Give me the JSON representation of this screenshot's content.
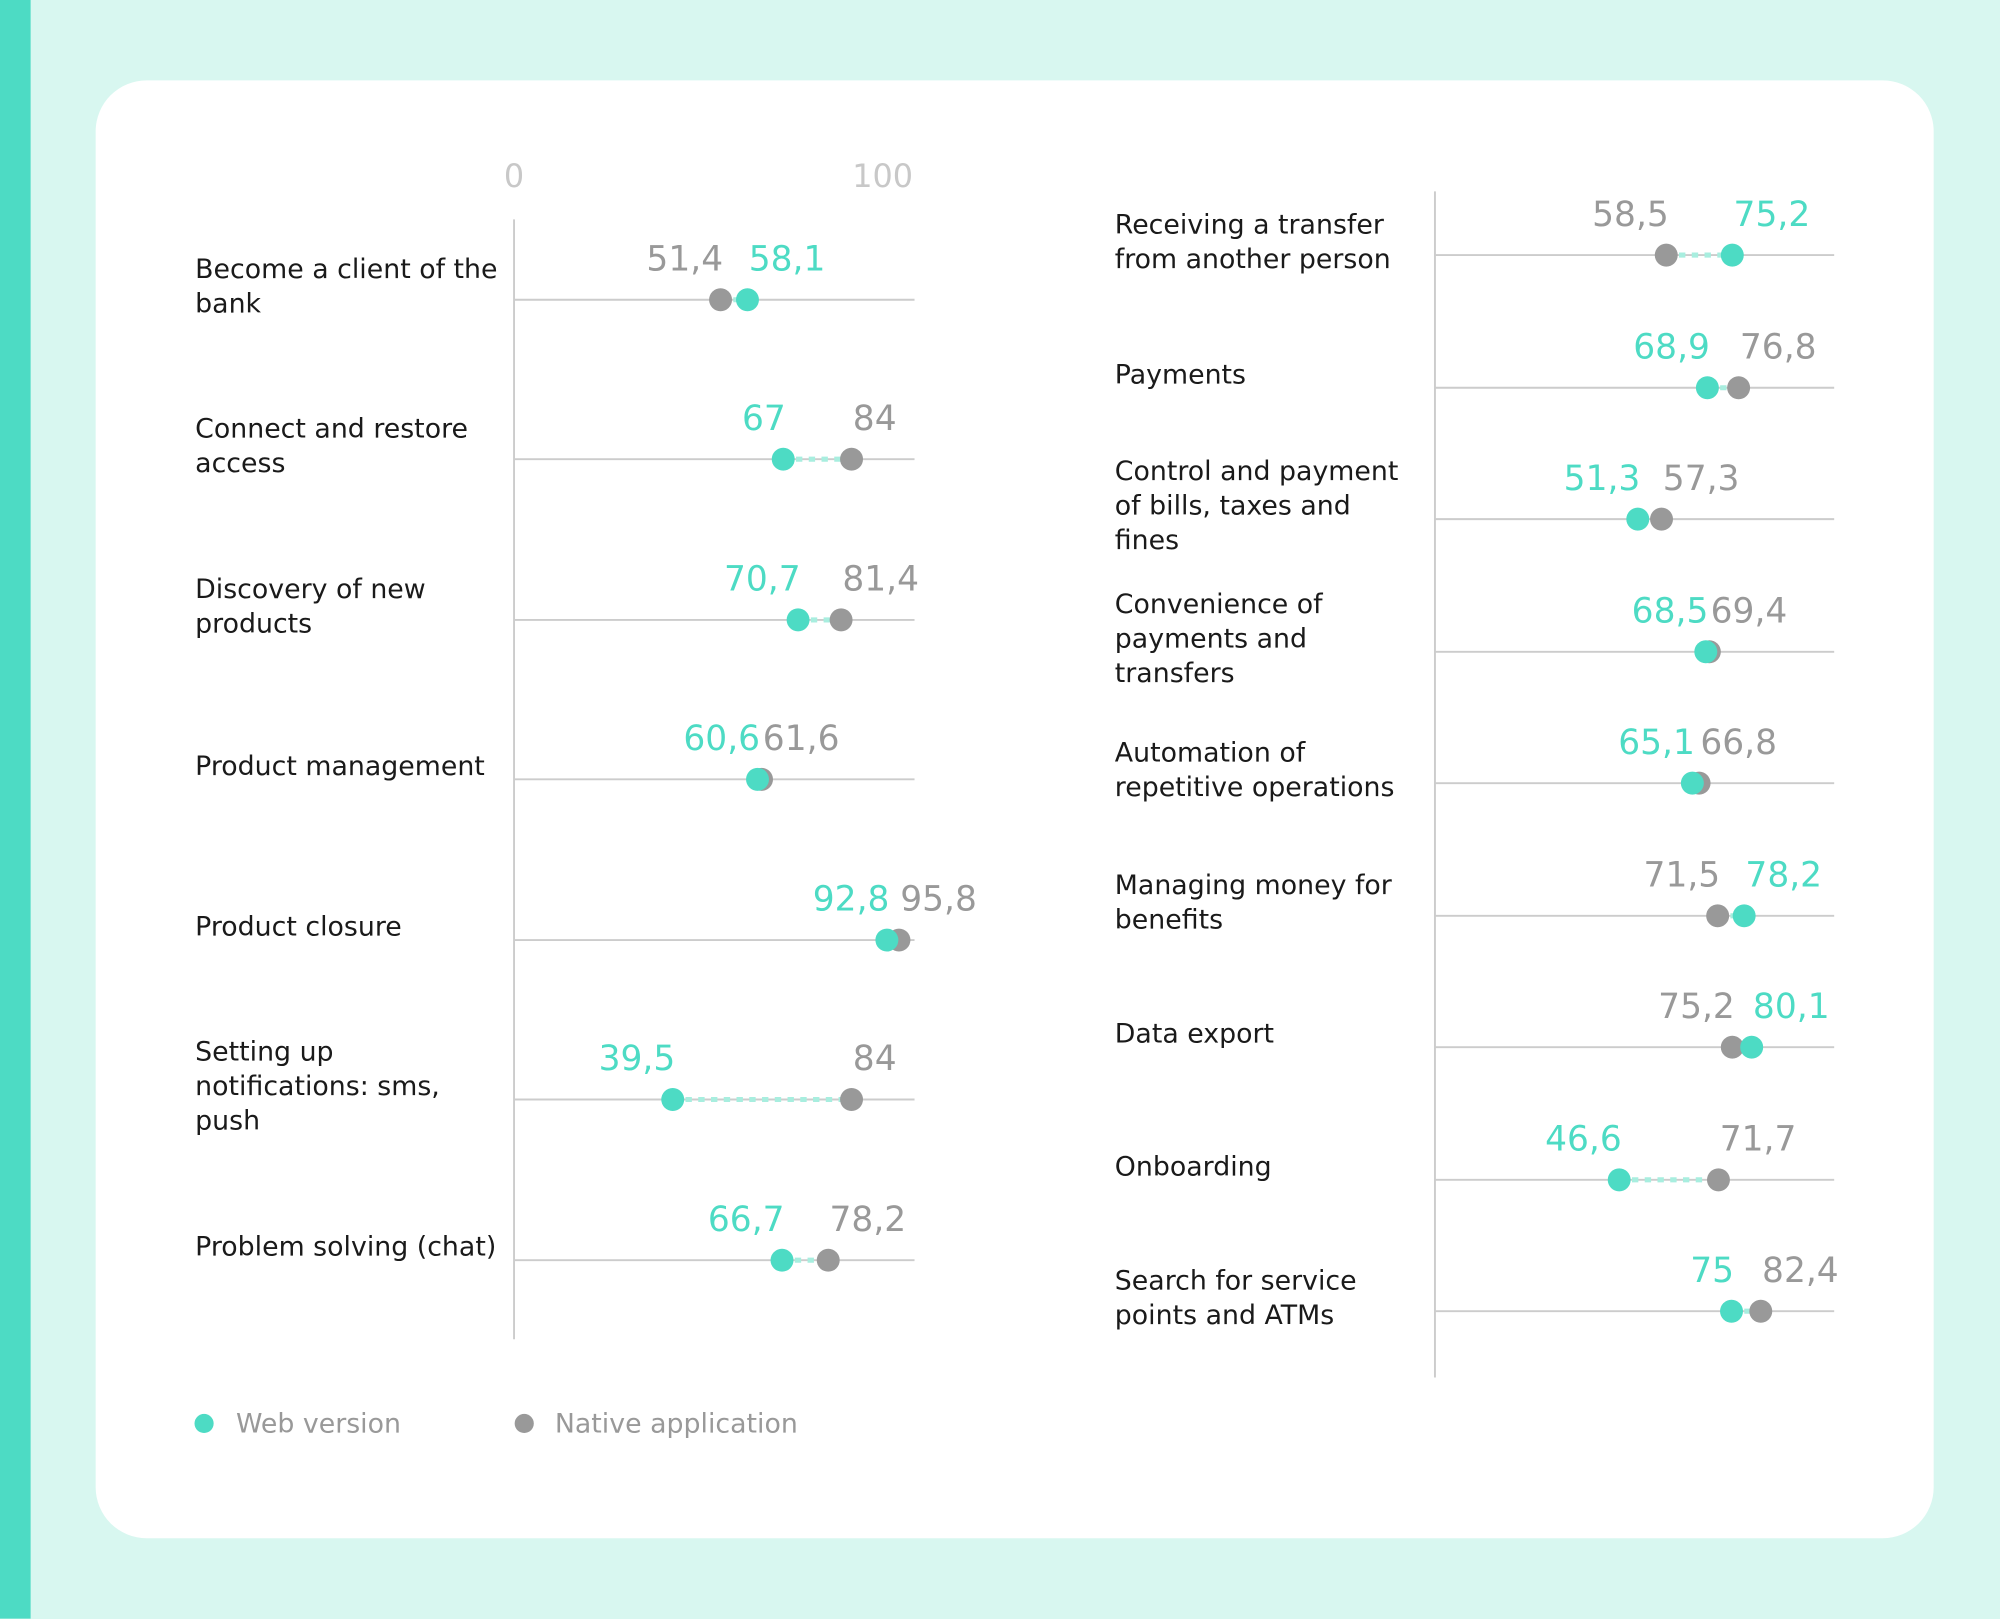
{
  "colors": {
    "web": "#4ddbc4",
    "native": "#999999",
    "connector": "#a8eedf",
    "grid": "#cccccc"
  },
  "chart_data": [
    {
      "type": "dumbbell",
      "xlim": [
        0,
        100
      ],
      "tick_labels": [
        "0",
        "100"
      ],
      "categories": [
        "Become a client of the bank",
        "Connect and restore access",
        "Discovery of new products",
        "Product management",
        "Product closure",
        "Setting up notifications: sms, push",
        "Problem solving (chat)"
      ],
      "series": [
        {
          "name": "Web version",
          "values": [
            58.1,
            67,
            70.7,
            60.6,
            92.8,
            39.5,
            66.7
          ],
          "labels": [
            "58,1",
            "67",
            "70,7",
            "60,6",
            "92,8",
            "39,5",
            "66,7"
          ]
        },
        {
          "name": "Native application",
          "values": [
            51.4,
            84,
            81.4,
            61.6,
            95.8,
            84,
            78.2
          ],
          "labels": [
            "51,4",
            "84",
            "81,4",
            "61,6",
            "95,8",
            "84",
            "78,2"
          ]
        }
      ]
    },
    {
      "type": "dumbbell",
      "xlim": [
        0,
        100
      ],
      "categories": [
        "Receiving a transfer from another person",
        "Payments",
        "Control and payment of bills, taxes and fines",
        "Convenience of payments and transfers",
        "Automation of repetitive operations",
        "Managing money for benefits",
        "Data export",
        "Onboarding",
        "Search for service points and ATMs"
      ],
      "series": [
        {
          "name": "Web version",
          "values": [
            75.2,
            68.9,
            51.3,
            68.5,
            65.1,
            78.2,
            80.1,
            46.6,
            75
          ],
          "labels": [
            "75,2",
            "68,9",
            "51,3",
            "68,5",
            "65,1",
            "78,2",
            "80,1",
            "46,6",
            "75"
          ]
        },
        {
          "name": "Native application",
          "values": [
            58.5,
            76.8,
            57.3,
            69.4,
            66.8,
            71.5,
            75.2,
            71.7,
            82.4
          ],
          "labels": [
            "58,5",
            "76,8",
            "57,3",
            "69,4",
            "66,8",
            "71,5",
            "75,2",
            "71,7",
            "82,4"
          ]
        }
      ]
    }
  ],
  "legend": {
    "web": "Web version",
    "native": "Native application"
  }
}
